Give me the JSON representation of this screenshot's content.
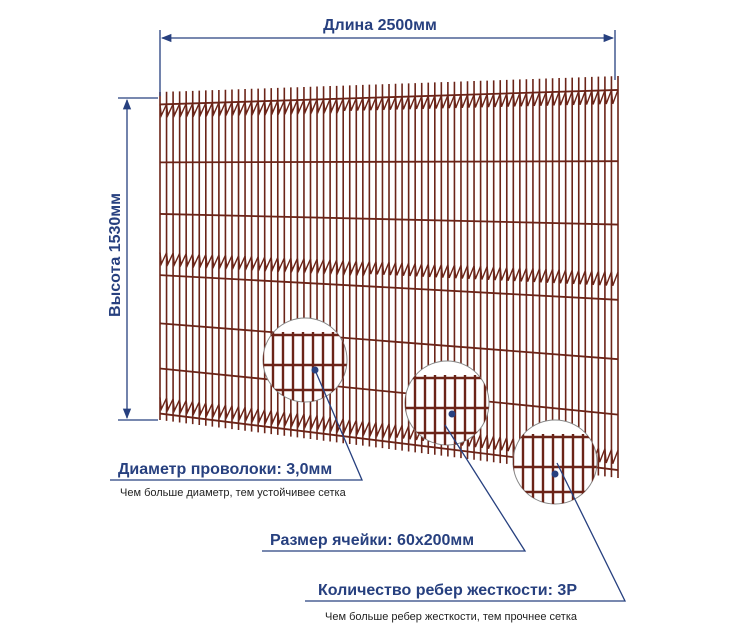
{
  "dimensions": {
    "length": "Длина 2500мм",
    "height": "Высота 1530мм"
  },
  "callouts": [
    {
      "title": "Диаметр проволоки: 3,0мм",
      "note": "Чем больше диаметр, тем устойчивее сетка"
    },
    {
      "title": "Размер ячейки: 60х200мм"
    },
    {
      "title": "Количество ребер жесткости: 3Р",
      "note": "Чем больше ребер жесткости, тем прочнее сетка"
    }
  ]
}
